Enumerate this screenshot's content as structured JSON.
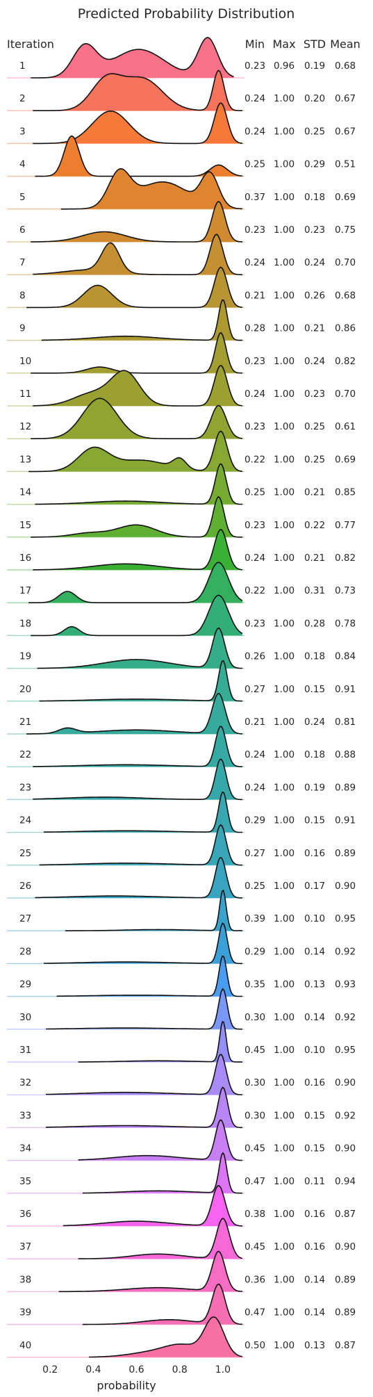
{
  "chart_data": {
    "type": "ridgeline",
    "title": "Predicted Probability Distribution",
    "xlabel": "probability",
    "xlim": [
      0.0,
      1.1
    ],
    "x_ticks": [
      "0.2",
      "0.4",
      "0.6",
      "0.8",
      "1.0"
    ],
    "x_tick_values": [
      0.2,
      0.4,
      0.6,
      0.8,
      1.0
    ],
    "row_header": "Iteration",
    "stat_headers": [
      "Min",
      "Max",
      "STD",
      "Mean"
    ],
    "rows": [
      {
        "label": "1",
        "min": "0.23",
        "max": "0.96",
        "std": "0.19",
        "mean": "0.68",
        "color": "#f77189",
        "peaks": [
          [
            0.36,
            0.055,
            0.78
          ],
          [
            0.61,
            0.12,
            0.72
          ],
          [
            0.93,
            0.045,
            1.0
          ]
        ]
      },
      {
        "label": "2",
        "min": "0.24",
        "max": "1.00",
        "std": "0.20",
        "mean": "0.67",
        "color": "#f7745c",
        "peaks": [
          [
            0.46,
            0.07,
            0.75
          ],
          [
            0.63,
            0.09,
            0.78
          ],
          [
            0.98,
            0.025,
            1.0
          ]
        ]
      },
      {
        "label": "3",
        "min": "0.24",
        "max": "1.00",
        "std": "0.25",
        "mean": "0.67",
        "color": "#f57a39",
        "peaks": [
          [
            0.48,
            0.085,
            0.8
          ],
          [
            0.99,
            0.03,
            1.0
          ]
        ]
      },
      {
        "label": "4",
        "min": "0.25",
        "max": "1.00",
        "std": "0.29",
        "mean": "0.51",
        "color": "#ec7f2f",
        "peaks": [
          [
            0.3,
            0.035,
            1.0
          ],
          [
            0.98,
            0.04,
            0.28
          ]
        ]
      },
      {
        "label": "5",
        "min": "0.37",
        "max": "1.00",
        "std": "0.18",
        "mean": "0.69",
        "color": "#df8530",
        "peaks": [
          [
            0.52,
            0.05,
            0.88
          ],
          [
            0.72,
            0.12,
            0.72
          ],
          [
            0.94,
            0.04,
            0.85
          ]
        ]
      },
      {
        "label": "6",
        "min": "0.23",
        "max": "1.00",
        "std": "0.23",
        "mean": "0.75",
        "color": "#d08b30",
        "peaks": [
          [
            0.45,
            0.1,
            0.25
          ],
          [
            0.98,
            0.03,
            1.0
          ]
        ]
      },
      {
        "label": "7",
        "min": "0.24",
        "max": "1.00",
        "std": "0.24",
        "mean": "0.70",
        "color": "#c49031",
        "peaks": [
          [
            0.48,
            0.04,
            0.6
          ],
          [
            0.38,
            0.12,
            0.1
          ],
          [
            0.97,
            0.03,
            0.85
          ]
        ]
      },
      {
        "label": "8",
        "min": "0.21",
        "max": "1.00",
        "std": "0.26",
        "mean": "0.68",
        "color": "#b99432",
        "peaks": [
          [
            0.42,
            0.065,
            0.55
          ],
          [
            0.99,
            0.03,
            1.0
          ]
        ]
      },
      {
        "label": "9",
        "min": "0.28",
        "max": "1.00",
        "std": "0.21",
        "mean": "0.86",
        "color": "#ac9a31",
        "peaks": [
          [
            0.55,
            0.15,
            0.1
          ],
          [
            1.0,
            0.02,
            1.0
          ]
        ]
      },
      {
        "label": "10",
        "min": "0.23",
        "max": "1.00",
        "std": "0.24",
        "mean": "0.82",
        "color": "#a39e31",
        "peaks": [
          [
            0.43,
            0.06,
            0.15
          ],
          [
            0.99,
            0.025,
            1.0
          ]
        ]
      },
      {
        "label": "11",
        "min": "0.24",
        "max": "1.00",
        "std": "0.23",
        "mean": "0.70",
        "color": "#9aa131",
        "peaks": [
          [
            0.55,
            0.065,
            0.75
          ],
          [
            0.4,
            0.09,
            0.3
          ],
          [
            0.99,
            0.03,
            0.95
          ]
        ]
      },
      {
        "label": "12",
        "min": "0.23",
        "max": "1.00",
        "std": "0.25",
        "mean": "0.61",
        "color": "#91a432",
        "peaks": [
          [
            0.43,
            0.08,
            0.85
          ],
          [
            0.98,
            0.035,
            0.7
          ]
        ]
      },
      {
        "label": "13",
        "min": "0.22",
        "max": "1.00",
        "std": "0.25",
        "mean": "0.69",
        "color": "#86a732",
        "peaks": [
          [
            0.4,
            0.07,
            0.55
          ],
          [
            0.62,
            0.12,
            0.28
          ],
          [
            0.8,
            0.03,
            0.25
          ],
          [
            0.99,
            0.03,
            1.0
          ]
        ]
      },
      {
        "label": "14",
        "min": "0.25",
        "max": "1.00",
        "std": "0.21",
        "mean": "0.85",
        "color": "#76ab32",
        "peaks": [
          [
            0.55,
            0.16,
            0.08
          ],
          [
            0.99,
            0.025,
            1.0
          ]
        ]
      },
      {
        "label": "15",
        "min": "0.23",
        "max": "1.00",
        "std": "0.22",
        "mean": "0.77",
        "color": "#5faf32",
        "peaks": [
          [
            0.6,
            0.09,
            0.3
          ],
          [
            0.38,
            0.08,
            0.1
          ],
          [
            0.98,
            0.025,
            1.0
          ]
        ]
      },
      {
        "label": "16",
        "min": "0.24",
        "max": "1.00",
        "std": "0.21",
        "mean": "0.82",
        "color": "#3ab134",
        "peaks": [
          [
            0.55,
            0.15,
            0.15
          ],
          [
            0.99,
            0.03,
            1.0
          ]
        ]
      },
      {
        "label": "17",
        "min": "0.22",
        "max": "1.00",
        "std": "0.31",
        "mean": "0.73",
        "color": "#33b05e",
        "peaks": [
          [
            0.28,
            0.04,
            0.28
          ],
          [
            0.98,
            0.045,
            1.0
          ]
        ]
      },
      {
        "label": "18",
        "min": "0.23",
        "max": "1.00",
        "std": "0.28",
        "mean": "0.78",
        "color": "#34ae77",
        "peaks": [
          [
            0.3,
            0.035,
            0.22
          ],
          [
            0.98,
            0.045,
            1.0
          ]
        ]
      },
      {
        "label": "19",
        "min": "0.26",
        "max": "1.00",
        "std": "0.18",
        "mean": "0.84",
        "color": "#35ad87",
        "peaks": [
          [
            0.6,
            0.15,
            0.22
          ],
          [
            0.98,
            0.028,
            1.0
          ]
        ]
      },
      {
        "label": "20",
        "min": "0.27",
        "max": "1.00",
        "std": "0.15",
        "mean": "0.91",
        "color": "#35ac93",
        "peaks": [
          [
            0.6,
            0.2,
            0.05
          ],
          [
            1.0,
            0.02,
            1.0
          ]
        ]
      },
      {
        "label": "21",
        "min": "0.21",
        "max": "1.00",
        "std": "0.24",
        "mean": "0.81",
        "color": "#36aa9c",
        "peaks": [
          [
            0.28,
            0.04,
            0.13
          ],
          [
            0.6,
            0.18,
            0.1
          ],
          [
            0.98,
            0.03,
            1.0
          ]
        ]
      },
      {
        "label": "22",
        "min": "0.24",
        "max": "1.00",
        "std": "0.18",
        "mean": "0.88",
        "color": "#36a9a3",
        "peaks": [
          [
            0.55,
            0.2,
            0.05
          ],
          [
            0.99,
            0.025,
            1.0
          ]
        ]
      },
      {
        "label": "23",
        "min": "0.24",
        "max": "1.00",
        "std": "0.19",
        "mean": "0.89",
        "color": "#37a8a9",
        "peaks": [
          [
            0.45,
            0.18,
            0.06
          ],
          [
            0.99,
            0.025,
            1.0
          ]
        ]
      },
      {
        "label": "24",
        "min": "0.29",
        "max": "1.00",
        "std": "0.15",
        "mean": "0.91",
        "color": "#37a7b0",
        "peaks": [
          [
            0.55,
            0.2,
            0.04
          ],
          [
            1.0,
            0.02,
            1.0
          ]
        ]
      },
      {
        "label": "25",
        "min": "0.27",
        "max": "1.00",
        "std": "0.16",
        "mean": "0.89",
        "color": "#38a6b7",
        "peaks": [
          [
            0.55,
            0.2,
            0.05
          ],
          [
            0.99,
            0.025,
            1.0
          ]
        ]
      },
      {
        "label": "26",
        "min": "0.25",
        "max": "1.00",
        "std": "0.17",
        "mean": "0.90",
        "color": "#39a4bf",
        "peaks": [
          [
            0.5,
            0.2,
            0.05
          ],
          [
            0.99,
            0.025,
            1.0
          ]
        ]
      },
      {
        "label": "27",
        "min": "0.39",
        "max": "1.00",
        "std": "0.10",
        "mean": "0.95",
        "color": "#3aa2cb",
        "peaks": [
          [
            0.7,
            0.15,
            0.03
          ],
          [
            1.0,
            0.015,
            1.0
          ]
        ]
      },
      {
        "label": "28",
        "min": "0.29",
        "max": "1.00",
        "std": "0.14",
        "mean": "0.92",
        "color": "#3b9fd8",
        "peaks": [
          [
            0.55,
            0.2,
            0.04
          ],
          [
            1.0,
            0.02,
            1.0
          ]
        ]
      },
      {
        "label": "29",
        "min": "0.35",
        "max": "1.00",
        "std": "0.13",
        "mean": "0.93",
        "color": "#4a9cf0",
        "peaks": [
          [
            0.6,
            0.2,
            0.03
          ],
          [
            1.0,
            0.018,
            1.0
          ]
        ]
      },
      {
        "label": "30",
        "min": "0.30",
        "max": "1.00",
        "std": "0.14",
        "mean": "0.92",
        "color": "#7a97f6",
        "peaks": [
          [
            0.55,
            0.2,
            0.03
          ],
          [
            1.0,
            0.02,
            1.0
          ]
        ]
      },
      {
        "label": "31",
        "min": "0.45",
        "max": "1.00",
        "std": "0.10",
        "mean": "0.95",
        "color": "#9590f5",
        "peaks": [
          [
            0.7,
            0.15,
            0.03
          ],
          [
            1.0,
            0.015,
            1.0
          ]
        ]
      },
      {
        "label": "32",
        "min": "0.30",
        "max": "1.00",
        "std": "0.16",
        "mean": "0.90",
        "color": "#a88bf5",
        "peaks": [
          [
            0.55,
            0.2,
            0.06
          ],
          [
            0.99,
            0.025,
            1.0
          ]
        ]
      },
      {
        "label": "33",
        "min": "0.30",
        "max": "1.00",
        "std": "0.15",
        "mean": "0.92",
        "color": "#b886f4",
        "peaks": [
          [
            0.55,
            0.2,
            0.05
          ],
          [
            1.0,
            0.022,
            1.0
          ]
        ]
      },
      {
        "label": "34",
        "min": "0.45",
        "max": "1.00",
        "std": "0.15",
        "mean": "0.90",
        "color": "#c87ff4",
        "peaks": [
          [
            0.65,
            0.15,
            0.12
          ],
          [
            0.99,
            0.025,
            1.0
          ]
        ]
      },
      {
        "label": "35",
        "min": "0.47",
        "max": "1.00",
        "std": "0.11",
        "mean": "0.94",
        "color": "#da76f4",
        "peaks": [
          [
            0.7,
            0.15,
            0.06
          ],
          [
            1.0,
            0.018,
            1.0
          ]
        ]
      },
      {
        "label": "36",
        "min": "0.38",
        "max": "1.00",
        "std": "0.16",
        "mean": "0.87",
        "color": "#f464ef",
        "peaks": [
          [
            0.6,
            0.15,
            0.12
          ],
          [
            0.98,
            0.03,
            1.0
          ]
        ]
      },
      {
        "label": "37",
        "min": "0.45",
        "max": "1.00",
        "std": "0.16",
        "mean": "0.90",
        "color": "#f569d7",
        "peaks": [
          [
            0.7,
            0.12,
            0.12
          ],
          [
            1.0,
            0.03,
            1.0
          ]
        ]
      },
      {
        "label": "38",
        "min": "0.36",
        "max": "1.00",
        "std": "0.14",
        "mean": "0.89",
        "color": "#f56cc3",
        "peaks": [
          [
            0.7,
            0.15,
            0.1
          ],
          [
            0.98,
            0.03,
            1.0
          ]
        ]
      },
      {
        "label": "39",
        "min": "0.47",
        "max": "1.00",
        "std": "0.14",
        "mean": "0.89",
        "color": "#f56eb4",
        "peaks": [
          [
            0.75,
            0.12,
            0.12
          ],
          [
            0.98,
            0.03,
            1.0
          ]
        ]
      },
      {
        "label": "40",
        "min": "0.50",
        "max": "1.00",
        "std": "0.13",
        "mean": "0.87",
        "color": "#f670a5",
        "peaks": [
          [
            0.7,
            0.12,
            0.15
          ],
          [
            0.82,
            0.08,
            0.25
          ],
          [
            0.96,
            0.045,
            1.0
          ]
        ]
      }
    ]
  }
}
